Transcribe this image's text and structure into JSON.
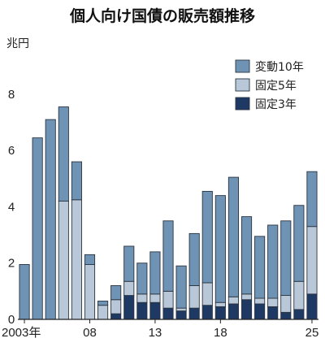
{
  "chart_data": {
    "type": "bar",
    "stacked": true,
    "title": "個人向け国債の販売額推移",
    "ylabel": "兆円",
    "ylim": [
      0,
      9.5
    ],
    "yticks": [
      0,
      2,
      4,
      6,
      8
    ],
    "x": [
      2003,
      2004,
      2005,
      2006,
      2007,
      2008,
      2009,
      2010,
      2011,
      2012,
      2013,
      2014,
      2015,
      2016,
      2017,
      2018,
      2019,
      2020,
      2021,
      2022,
      2023,
      2024,
      2025
    ],
    "xtick_labels": [
      {
        "x": 2003,
        "label": "2003年"
      },
      {
        "x": 2008,
        "label": "08"
      },
      {
        "x": 2013,
        "label": "13"
      },
      {
        "x": 2018,
        "label": "18"
      },
      {
        "x": 2025,
        "label": "25"
      }
    ],
    "legend_position": "top-right",
    "series": [
      {
        "name": "固定3年",
        "color": "#1e3a64",
        "values": [
          0,
          0,
          0,
          0,
          0,
          0,
          0,
          0.2,
          0.85,
          0.6,
          0.6,
          0.4,
          0.3,
          0.4,
          0.5,
          0.45,
          0.55,
          0.7,
          0.55,
          0.45,
          0.25,
          0.35,
          0.9
        ]
      },
      {
        "name": "固定5年",
        "color": "#b8c8d8",
        "values": [
          0,
          0,
          0,
          4.2,
          4.25,
          1.95,
          0.5,
          0.5,
          0.5,
          0.3,
          0.3,
          0.6,
          0.1,
          0.8,
          0.8,
          0.15,
          0.25,
          0.2,
          0.2,
          0.3,
          0.6,
          1.0,
          2.4
        ]
      },
      {
        "name": "変動10年",
        "color": "#6f93b4",
        "values": [
          1.95,
          6.45,
          7.1,
          3.35,
          1.35,
          0.35,
          0.15,
          0.5,
          1.25,
          1.1,
          1.5,
          2.5,
          1.5,
          1.85,
          3.25,
          3.8,
          4.25,
          2.75,
          2.2,
          2.6,
          2.65,
          2.7,
          1.95
        ]
      }
    ]
  }
}
